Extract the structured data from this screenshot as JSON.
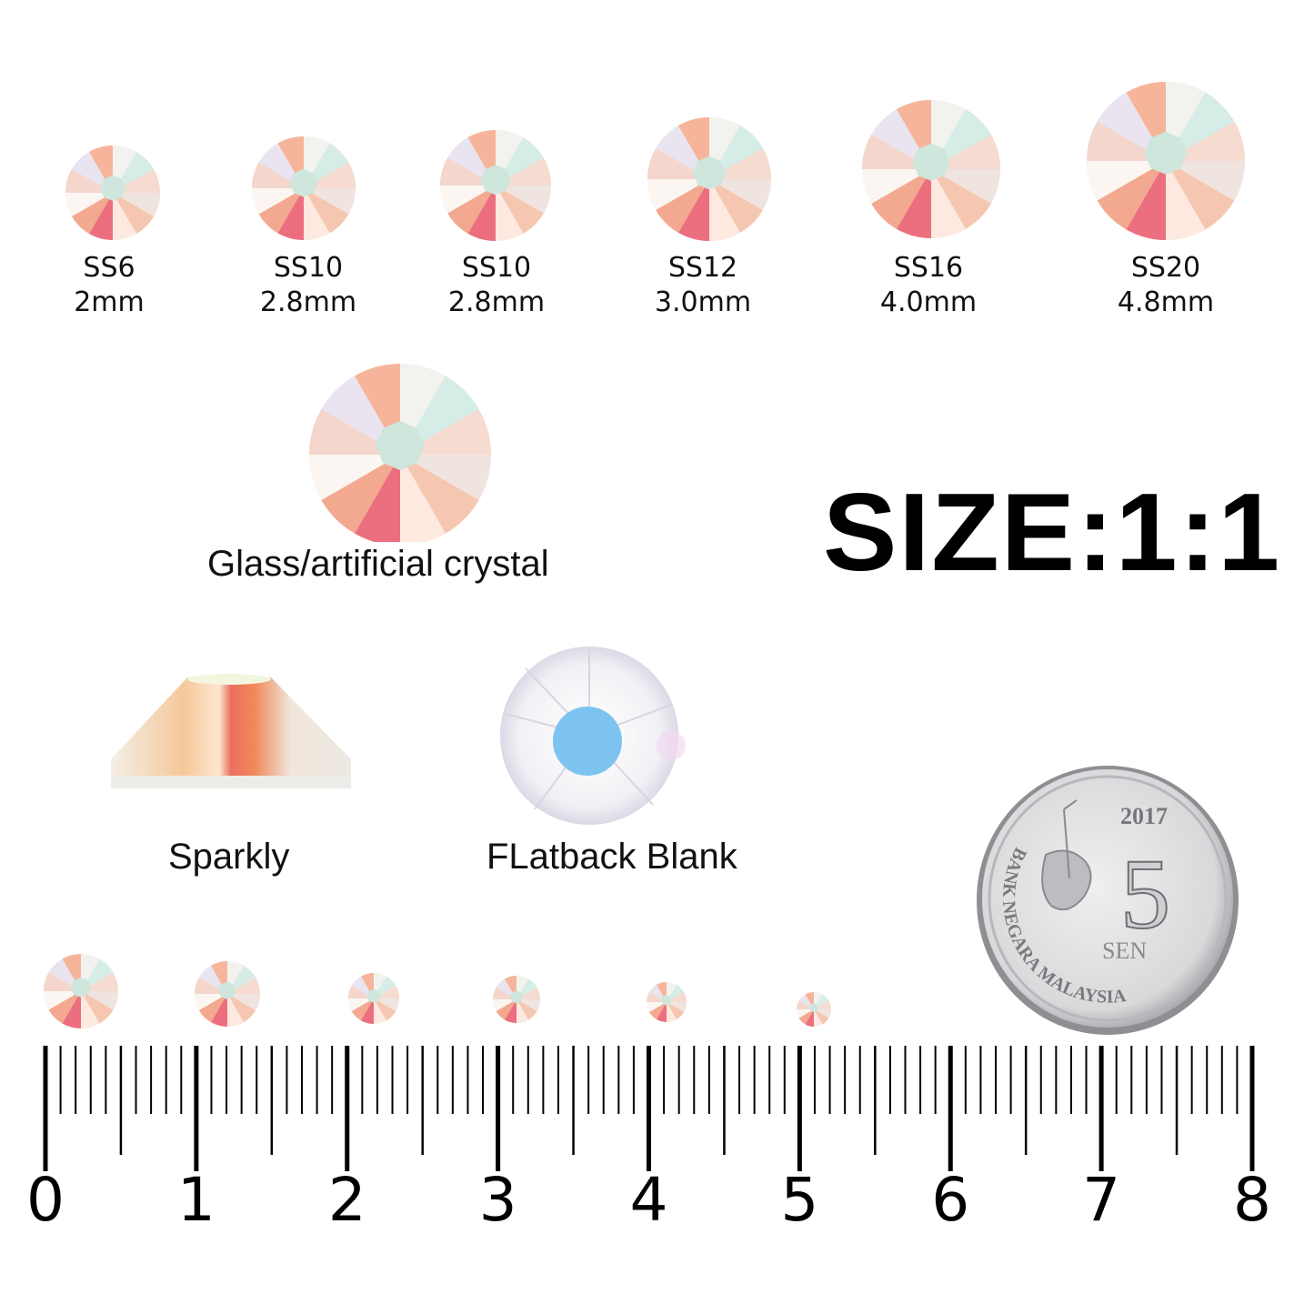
{
  "sizes": [
    {
      "code": "SS6",
      "mm": "2mm"
    },
    {
      "code": "SS10",
      "mm": "2.8mm"
    },
    {
      "code": "SS10",
      "mm": "2.8mm"
    },
    {
      "code": "SS12",
      "mm": "3.0mm"
    },
    {
      "code": "SS16",
      "mm": "4.0mm"
    },
    {
      "code": "SS20",
      "mm": "4.8mm"
    }
  ],
  "material_caption": "Glass/artificial crystal",
  "size_title": "SIZE:1:1",
  "views": {
    "side": "Sparkly",
    "back": "FLatback Blank"
  },
  "coin": {
    "year": "2017",
    "value": "5",
    "unit": "SEN",
    "legend": "BANK NEGARA MALAYSIA"
  },
  "ruler": {
    "unit": "cm",
    "labels": [
      "0",
      "1",
      "2",
      "3",
      "4",
      "5",
      "6",
      "7",
      "8"
    ]
  },
  "colors": {
    "facet_pink": "#ec6f7f",
    "facet_peach": "#f3c39a",
    "facet_mint": "#cfe6dc",
    "flatback_blue": "#7cc3f0",
    "coin_silver": "#d9d9db"
  }
}
